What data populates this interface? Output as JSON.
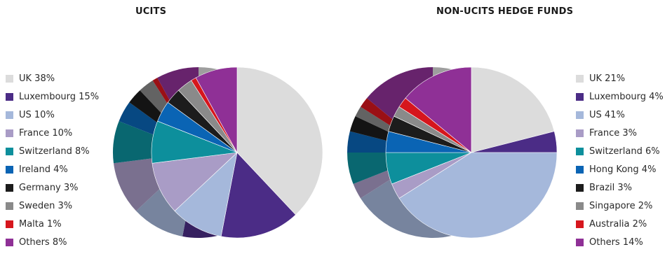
{
  "chart_data": [
    {
      "type": "pie",
      "title": "UCITS",
      "categories": [
        "UK",
        "Luxembourg",
        "US",
        "France",
        "Switzerland",
        "Ireland",
        "Germany",
        "Sweden",
        "Malta",
        "Others"
      ],
      "values": [
        38,
        15,
        10,
        10,
        8,
        4,
        3,
        3,
        1,
        8
      ],
      "unit": "%",
      "legend_labels": [
        "UK 38%",
        "Luxembourg 15%",
        "US 10%",
        "France 10%",
        "Switzerland 8%",
        "Ireland 4%",
        "Germany 3%",
        "Sweden 3%",
        "Malta 1%",
        "Others 8%"
      ],
      "colors": [
        "#dcdcdc",
        "#4b2c86",
        "#a5b8db",
        "#a99cc6",
        "#0d8f9c",
        "#0a64b4",
        "#1c1c1c",
        "#8a8a8a",
        "#d6161d",
        "#8f3096"
      ],
      "legend": "left"
    },
    {
      "type": "pie",
      "title": "NON-UCITS HEDGE FUNDS",
      "categories": [
        "UK",
        "Luxembourg",
        "US",
        "France",
        "Switzerland",
        "Hong Kong",
        "Brazil",
        "Singapore",
        "Australia",
        "Others"
      ],
      "values": [
        21,
        4,
        41,
        3,
        6,
        4,
        3,
        2,
        2,
        14
      ],
      "unit": "%",
      "legend_labels": [
        "UK 21%",
        "Luxembourg 4%",
        "US 41%",
        "France 3%",
        "Switzerland 6%",
        "Hong Kong 4%",
        "Brazil 3%",
        "Singapore 2%",
        "Australia 2%",
        "Others 14%"
      ],
      "colors": [
        "#dcdcdc",
        "#4b2c86",
        "#a5b8db",
        "#a99cc6",
        "#0d8f9c",
        "#0a64b4",
        "#1c1c1c",
        "#8a8a8a",
        "#d6161d",
        "#8f3096"
      ],
      "legend": "right"
    }
  ]
}
